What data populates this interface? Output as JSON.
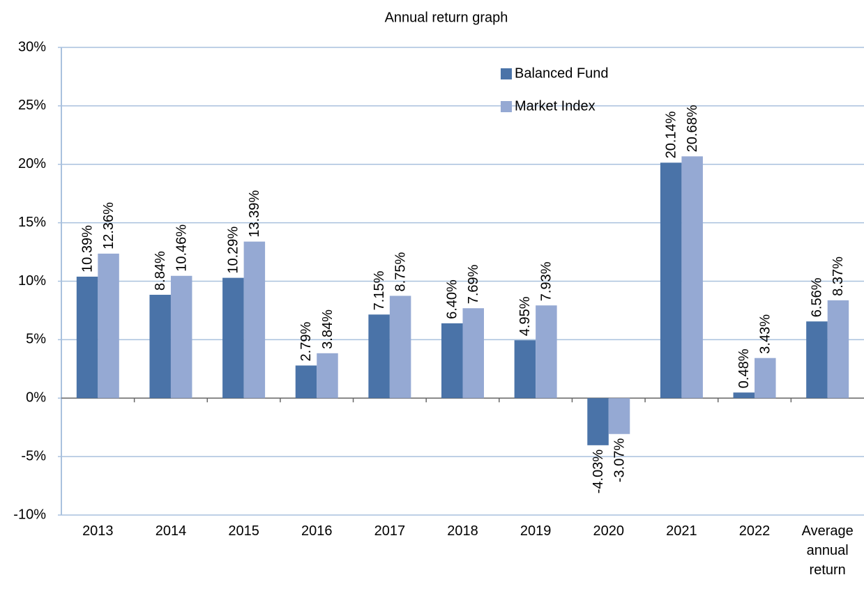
{
  "chart_data": {
    "type": "bar",
    "title": "Annual  return graph",
    "categories": [
      "2013",
      "2014",
      "2015",
      "2016",
      "2017",
      "2018",
      "2019",
      "2020",
      "2021",
      "2022",
      "Average annual return"
    ],
    "series": [
      {
        "name": "Balanced Fund",
        "color": "#4a73a8",
        "values": [
          10.39,
          8.84,
          10.29,
          2.79,
          7.15,
          6.4,
          4.95,
          -4.03,
          20.14,
          0.48,
          6.56
        ],
        "value_labels": [
          "10.39%",
          "8.84%",
          "10.29%",
          "2.79%",
          "7.15%",
          "6.40%",
          "4.95%",
          "-4.03%",
          "20.14%",
          "0.48%",
          "6.56%"
        ]
      },
      {
        "name": "Market Index",
        "color": "#95a9d3",
        "values": [
          12.36,
          10.46,
          13.39,
          3.84,
          8.75,
          7.69,
          7.93,
          -3.07,
          20.68,
          3.43,
          8.37
        ],
        "value_labels": [
          "12.36%",
          "10.46%",
          "13.39%",
          "3.84%",
          "8.75%",
          "7.69%",
          "7.93%",
          "-3.07%",
          "20.68%",
          "3.43%",
          "8.37%"
        ]
      }
    ],
    "ylim": [
      -10,
      30
    ],
    "yticks": [
      {
        "value": -10,
        "label": "-10%"
      },
      {
        "value": -5,
        "label": "-5%"
      },
      {
        "value": 0,
        "label": "0%"
      },
      {
        "value": 5,
        "label": "5%"
      },
      {
        "value": 10,
        "label": "10%"
      },
      {
        "value": 15,
        "label": "15%"
      },
      {
        "value": 20,
        "label": "20%"
      },
      {
        "value": 25,
        "label": "25%"
      },
      {
        "value": 30,
        "label": "30%"
      }
    ],
    "grid": true,
    "legend": "top-right"
  }
}
